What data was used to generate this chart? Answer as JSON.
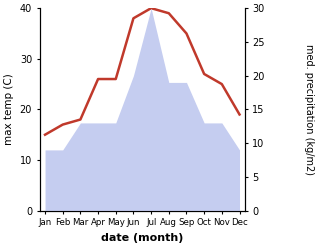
{
  "months": [
    "Jan",
    "Feb",
    "Mar",
    "Apr",
    "May",
    "Jun",
    "Jul",
    "Aug",
    "Sep",
    "Oct",
    "Nov",
    "Dec"
  ],
  "temp_C": [
    15,
    17,
    18,
    26,
    26,
    38,
    40,
    39,
    35,
    27,
    25,
    19
  ],
  "precip_kg": [
    9,
    9,
    13,
    13,
    13,
    20,
    30,
    19,
    19,
    13,
    13,
    9
  ],
  "temp_color": "#c0392b",
  "precip_color": "#c5cdf0",
  "left_ylabel": "max temp (C)",
  "right_ylabel": "med. precipitation (kg/m2)",
  "xlabel": "date (month)",
  "ylim_left": [
    0,
    40
  ],
  "ylim_right": [
    0,
    30
  ],
  "left_yticks": [
    0,
    10,
    20,
    30,
    40
  ],
  "right_yticks": [
    0,
    5,
    10,
    15,
    20,
    25,
    30
  ]
}
